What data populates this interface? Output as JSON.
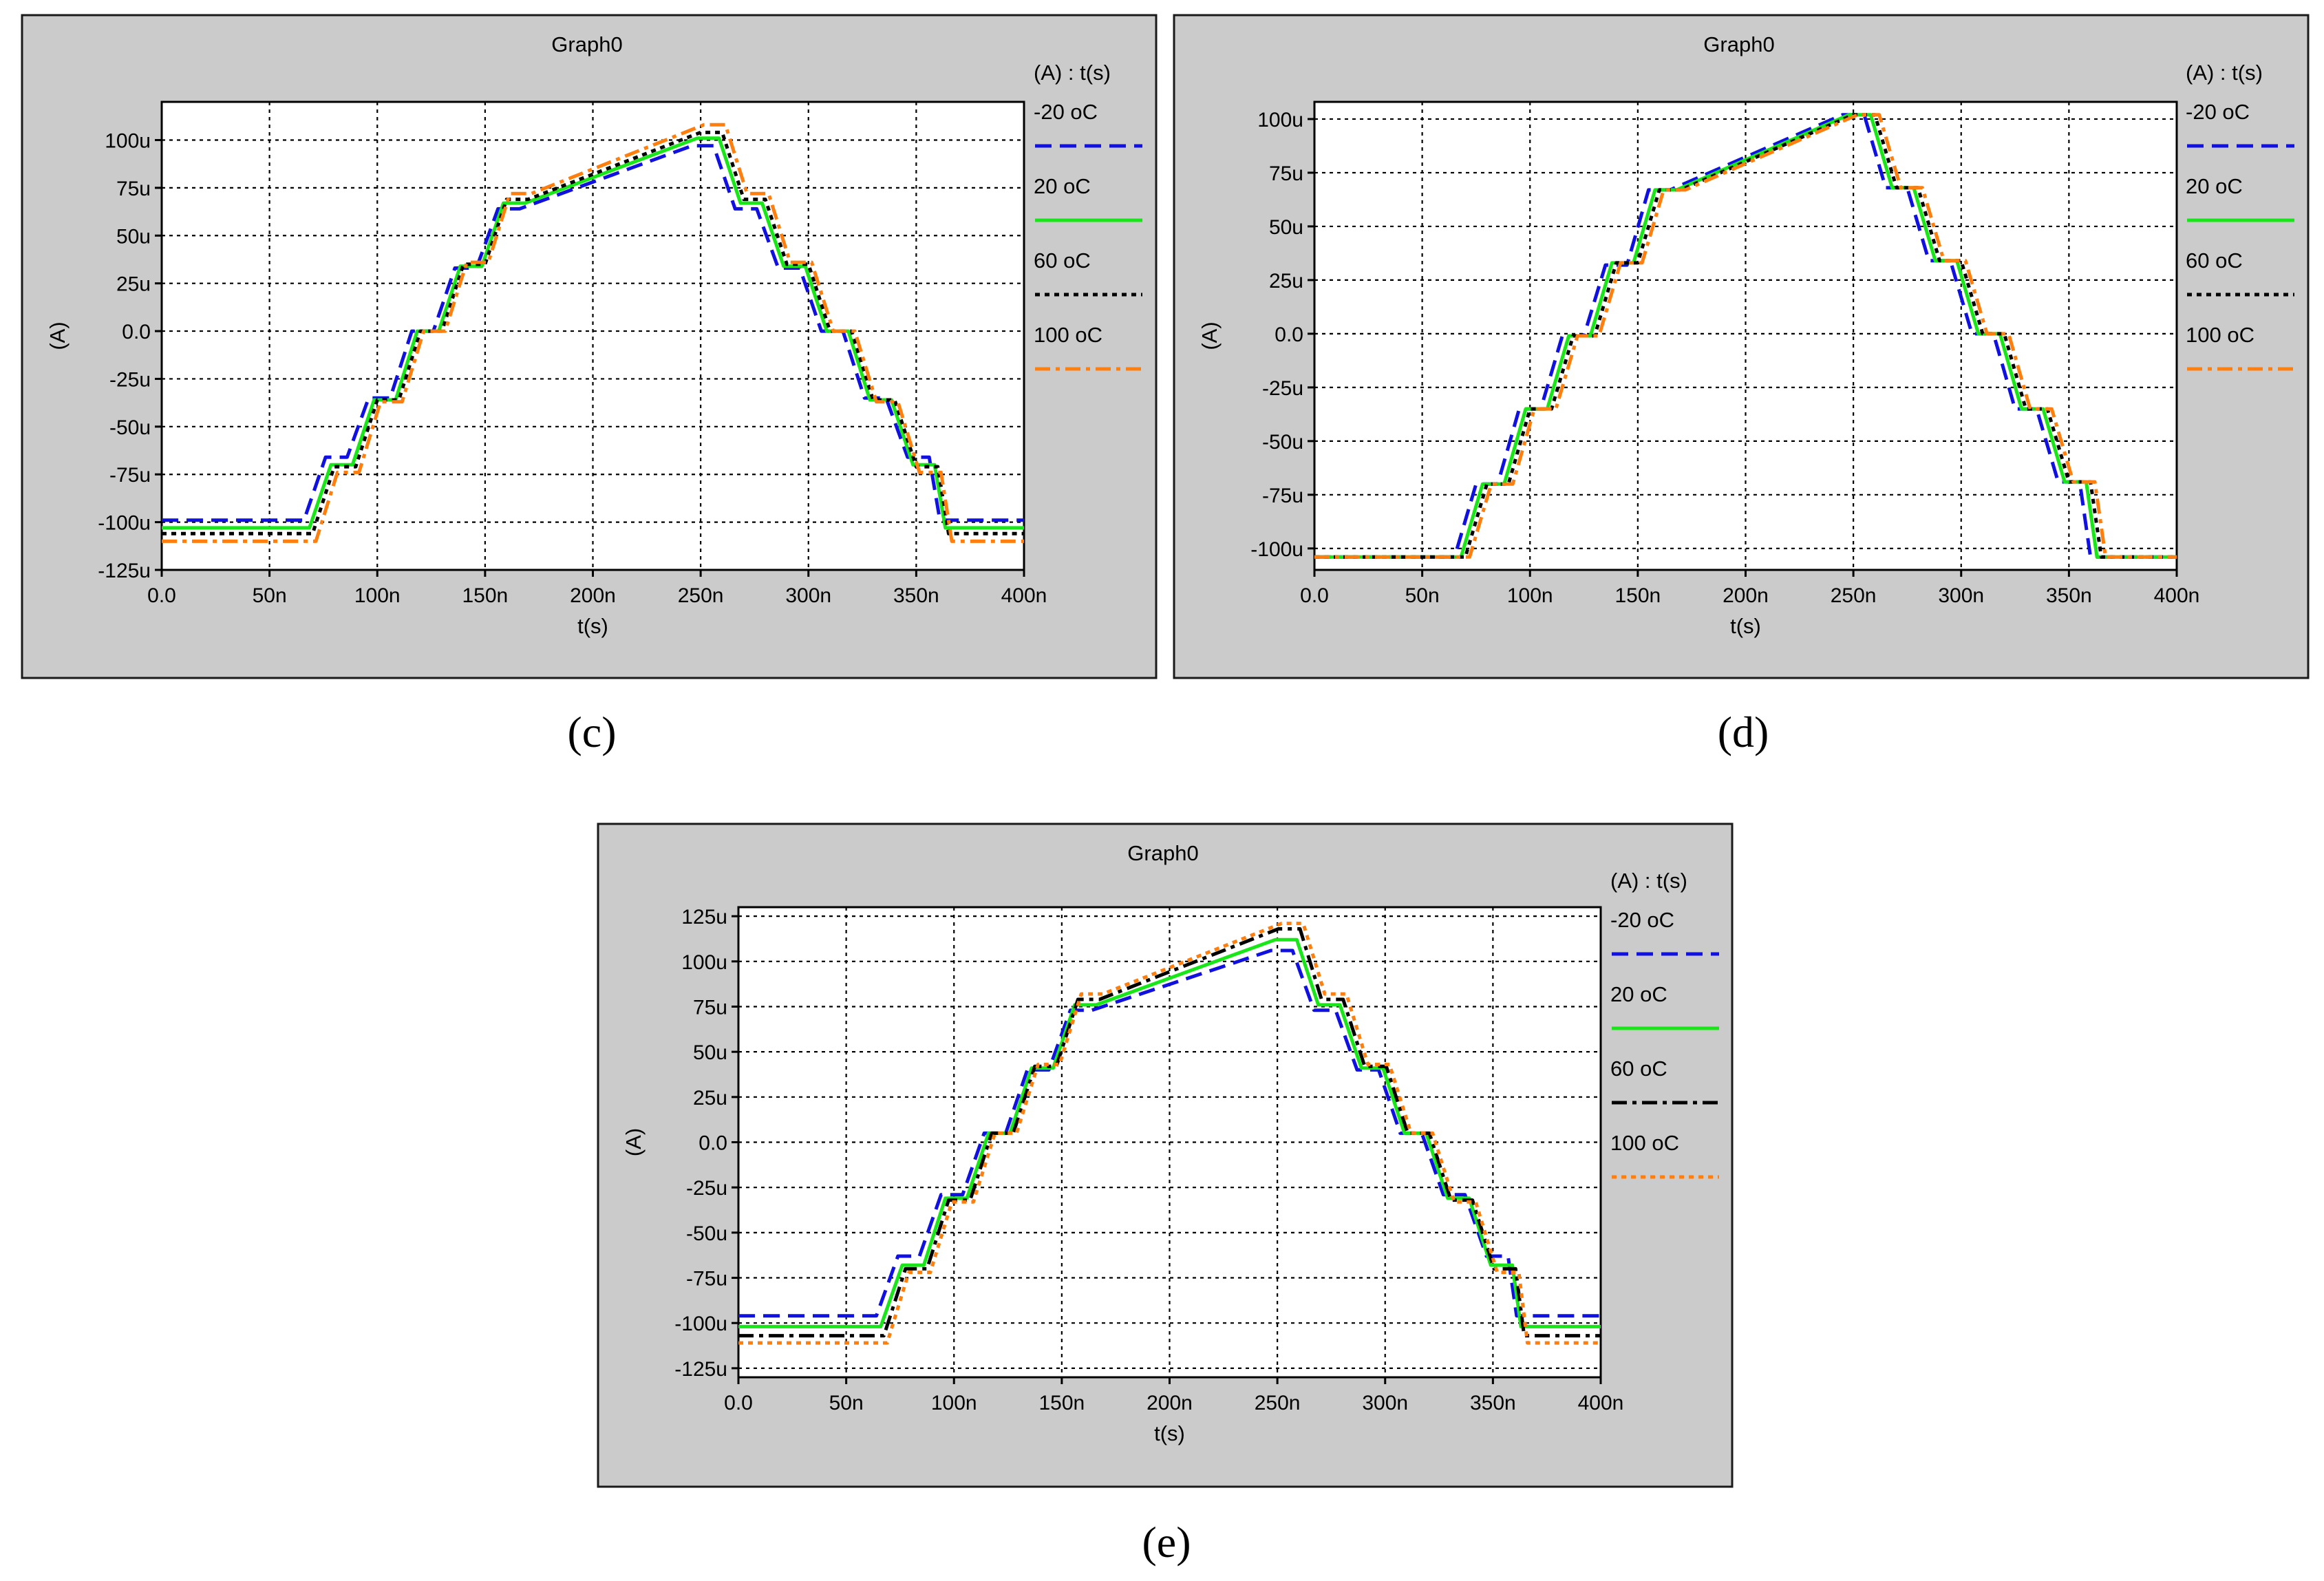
{
  "chart_data": [
    {
      "id": "c",
      "type": "line",
      "title": "Graph0",
      "caption": "(c)",
      "xlabel": "t(s)",
      "ylabel": "(A)",
      "legend_header": "(A) : t(s)",
      "legend_position": "right",
      "grid": true,
      "xlim": [
        0,
        400
      ],
      "ylim": [
        -125,
        120
      ],
      "x_ticks": [
        {
          "v": 0,
          "label": "0.0"
        },
        {
          "v": 50,
          "label": "50n"
        },
        {
          "v": 100,
          "label": "100n"
        },
        {
          "v": 150,
          "label": "150n"
        },
        {
          "v": 200,
          "label": "200n"
        },
        {
          "v": 250,
          "label": "250n"
        },
        {
          "v": 300,
          "label": "300n"
        },
        {
          "v": 350,
          "label": "350n"
        },
        {
          "v": 400,
          "label": "400n"
        }
      ],
      "y_ticks": [
        {
          "v": 100,
          "label": "100u"
        },
        {
          "v": 75,
          "label": "75u"
        },
        {
          "v": 50,
          "label": "50u"
        },
        {
          "v": 25,
          "label": "25u"
        },
        {
          "v": 0,
          "label": "0.0"
        },
        {
          "v": -25,
          "label": "-25u"
        },
        {
          "v": -50,
          "label": "-50u"
        },
        {
          "v": -75,
          "label": "-75u"
        },
        {
          "v": -100,
          "label": "-100u"
        },
        {
          "v": -125,
          "label": "-125u"
        }
      ],
      "series": [
        {
          "name": "-20 oC",
          "color": "#1010e0",
          "dash": "dash",
          "shift": -4,
          "x": [
            0,
            70,
            80,
            90,
            100,
            110,
            120,
            130,
            140,
            150,
            160,
            170,
            250,
            260,
            270,
            280,
            290,
            300,
            310,
            320,
            330,
            340,
            350,
            360,
            365,
            400
          ],
          "values": [
            -99,
            -99,
            -66,
            -66,
            -35,
            -35,
            0,
            0,
            33,
            33,
            64,
            64,
            97,
            97,
            64,
            64,
            33,
            33,
            0,
            0,
            -35,
            -35,
            -66,
            -66,
            -99,
            -99
          ]
        },
        {
          "name": "20 oC",
          "color": "#19e619",
          "dash": "solid",
          "shift": -1.5,
          "x": [
            0,
            70,
            80,
            90,
            100,
            110,
            120,
            130,
            140,
            150,
            160,
            170,
            250,
            260,
            270,
            280,
            290,
            300,
            310,
            320,
            330,
            340,
            350,
            360,
            365,
            400
          ],
          "values": [
            -103,
            -103,
            -70,
            -70,
            -36,
            -36,
            0,
            0,
            34,
            34,
            67,
            67,
            101,
            101,
            67,
            67,
            34,
            34,
            0,
            0,
            -36,
            -36,
            -70,
            -70,
            -103,
            -103
          ]
        },
        {
          "name": "60 oC",
          "color": "#000000",
          "dash": "dot",
          "shift": 0,
          "x": [
            0,
            70,
            80,
            90,
            100,
            110,
            120,
            130,
            140,
            150,
            160,
            170,
            250,
            260,
            270,
            280,
            290,
            300,
            310,
            320,
            330,
            340,
            350,
            360,
            365,
            400
          ],
          "values": [
            -106,
            -106,
            -71,
            -71,
            -36,
            -36,
            0,
            0,
            35,
            35,
            69,
            69,
            104,
            104,
            69,
            69,
            35,
            35,
            0,
            0,
            -36,
            -36,
            -71,
            -71,
            -106,
            -106
          ]
        },
        {
          "name": "100 oC",
          "color": "#ff7f0e",
          "dash": "dashdot",
          "shift": 1.5,
          "x": [
            0,
            70,
            80,
            90,
            100,
            110,
            120,
            130,
            140,
            150,
            160,
            170,
            250,
            260,
            270,
            280,
            290,
            300,
            310,
            320,
            330,
            340,
            350,
            360,
            365,
            400
          ],
          "values": [
            -110,
            -110,
            -74,
            -74,
            -37,
            -37,
            0,
            0,
            36,
            36,
            72,
            72,
            108,
            108,
            72,
            72,
            36,
            36,
            0,
            0,
            -37,
            -37,
            -74,
            -74,
            -110,
            -110
          ]
        }
      ]
    },
    {
      "id": "d",
      "type": "line",
      "title": "Graph0",
      "caption": "(d)",
      "xlabel": "t(s)",
      "ylabel": "(A)",
      "legend_header": "(A) : t(s)",
      "legend_position": "right",
      "grid": true,
      "xlim": [
        0,
        400
      ],
      "ylim": [
        -110,
        108
      ],
      "x_ticks": [
        {
          "v": 0,
          "label": "0.0"
        },
        {
          "v": 50,
          "label": "50n"
        },
        {
          "v": 100,
          "label": "100n"
        },
        {
          "v": 150,
          "label": "150n"
        },
        {
          "v": 200,
          "label": "200n"
        },
        {
          "v": 250,
          "label": "250n"
        },
        {
          "v": 300,
          "label": "300n"
        },
        {
          "v": 350,
          "label": "350n"
        },
        {
          "v": 400,
          "label": "400n"
        }
      ],
      "y_ticks": [
        {
          "v": 100,
          "label": "100u"
        },
        {
          "v": 75,
          "label": "75u"
        },
        {
          "v": 50,
          "label": "50u"
        },
        {
          "v": 25,
          "label": "25u"
        },
        {
          "v": 0,
          "label": "0.0"
        },
        {
          "v": -25,
          "label": "-25u"
        },
        {
          "v": -50,
          "label": "-50u"
        },
        {
          "v": -75,
          "label": "-75u"
        },
        {
          "v": -100,
          "label": "-100u"
        }
      ],
      "series": [
        {
          "name": "-20 oC",
          "color": "#1010e0",
          "dash": "dash",
          "shift": -5,
          "x": [
            0,
            70,
            80,
            90,
            100,
            110,
            120,
            130,
            140,
            150,
            160,
            170,
            250,
            260,
            270,
            280,
            290,
            300,
            310,
            320,
            330,
            340,
            350,
            360,
            365,
            400
          ],
          "values": [
            -104,
            -104,
            -70,
            -70,
            -35,
            -35,
            -1,
            -1,
            32,
            32,
            67,
            67,
            102,
            102,
            68,
            68,
            34,
            34,
            0,
            0,
            -35,
            -35,
            -69,
            -69,
            -104,
            -104
          ]
        },
        {
          "name": "20 oC",
          "color": "#19e619",
          "dash": "solid",
          "shift": -2,
          "x": [
            0,
            70,
            80,
            90,
            100,
            110,
            120,
            130,
            140,
            150,
            160,
            170,
            250,
            260,
            270,
            280,
            290,
            300,
            310,
            320,
            330,
            340,
            350,
            360,
            365,
            400
          ],
          "values": [
            -104,
            -104,
            -70,
            -70,
            -35,
            -35,
            -1,
            -1,
            33,
            33,
            67,
            67,
            102,
            102,
            68,
            68,
            34,
            34,
            0,
            0,
            -35,
            -35,
            -69,
            -69,
            -104,
            -104
          ]
        },
        {
          "name": "60 oC",
          "color": "#000000",
          "dash": "dot",
          "shift": 0,
          "x": [
            0,
            70,
            80,
            90,
            100,
            110,
            120,
            130,
            140,
            150,
            160,
            170,
            250,
            260,
            270,
            280,
            290,
            300,
            310,
            320,
            330,
            340,
            350,
            360,
            365,
            400
          ],
          "values": [
            -104,
            -104,
            -70,
            -70,
            -35,
            -35,
            -1,
            -1,
            33,
            33,
            67,
            67,
            102,
            102,
            68,
            68,
            34,
            34,
            0,
            0,
            -35,
            -35,
            -69,
            -69,
            -104,
            -104
          ]
        },
        {
          "name": "100 oC",
          "color": "#ff7f0e",
          "dash": "dashdot",
          "shift": 2,
          "x": [
            0,
            70,
            80,
            90,
            100,
            110,
            120,
            130,
            140,
            150,
            160,
            170,
            250,
            260,
            270,
            280,
            290,
            300,
            310,
            320,
            330,
            340,
            350,
            360,
            365,
            400
          ],
          "values": [
            -104,
            -104,
            -70,
            -70,
            -35,
            -35,
            -1,
            -1,
            33,
            33,
            67,
            67,
            102,
            102,
            68,
            68,
            34,
            34,
            0,
            0,
            -35,
            -35,
            -69,
            -69,
            -104,
            -104
          ]
        }
      ]
    },
    {
      "id": "e",
      "type": "line",
      "title": "Graph0",
      "caption": "(e)",
      "xlabel": "t(s)",
      "ylabel": "(A)",
      "legend_header": "(A) : t(s)",
      "legend_position": "right",
      "grid": true,
      "xlim": [
        0,
        400
      ],
      "ylim": [
        -130,
        130
      ],
      "x_ticks": [
        {
          "v": 0,
          "label": "0.0"
        },
        {
          "v": 50,
          "label": "50n"
        },
        {
          "v": 100,
          "label": "100n"
        },
        {
          "v": 150,
          "label": "150n"
        },
        {
          "v": 200,
          "label": "200n"
        },
        {
          "v": 250,
          "label": "250n"
        },
        {
          "v": 300,
          "label": "300n"
        },
        {
          "v": 350,
          "label": "350n"
        },
        {
          "v": 400,
          "label": "400n"
        }
      ],
      "y_ticks": [
        {
          "v": 125,
          "label": "125u"
        },
        {
          "v": 100,
          "label": "100u"
        },
        {
          "v": 75,
          "label": "75u"
        },
        {
          "v": 50,
          "label": "50u"
        },
        {
          "v": 25,
          "label": "25u"
        },
        {
          "v": 0,
          "label": "0.0"
        },
        {
          "v": -25,
          "label": "-25u"
        },
        {
          "v": -50,
          "label": "-50u"
        },
        {
          "v": -75,
          "label": "-75u"
        },
        {
          "v": -100,
          "label": "-100u"
        },
        {
          "v": -125,
          "label": "-125u"
        }
      ],
      "series": [
        {
          "name": "-20 oC",
          "color": "#1010e0",
          "dash": "dash",
          "shift": -3,
          "x": [
            0,
            67,
            77,
            87,
            97,
            107,
            117,
            127,
            137,
            147,
            157,
            167,
            250,
            260,
            270,
            280,
            290,
            300,
            310,
            320,
            330,
            340,
            350,
            360,
            364,
            400
          ],
          "values": [
            -96,
            -96,
            -63,
            -63,
            -29,
            -29,
            5,
            5,
            40,
            40,
            73,
            73,
            106,
            106,
            73,
            73,
            40,
            40,
            5,
            5,
            -29,
            -29,
            -63,
            -63,
            -96,
            -96
          ]
        },
        {
          "name": "20 oC",
          "color": "#19e619",
          "dash": "solid",
          "shift": -1,
          "x": [
            0,
            67,
            77,
            87,
            97,
            107,
            117,
            127,
            137,
            147,
            157,
            167,
            250,
            260,
            270,
            280,
            290,
            300,
            310,
            320,
            330,
            340,
            350,
            360,
            364,
            400
          ],
          "values": [
            -102,
            -102,
            -68,
            -68,
            -31,
            -31,
            5,
            5,
            41,
            41,
            76,
            76,
            112,
            112,
            76,
            76,
            41,
            41,
            5,
            5,
            -31,
            -31,
            -68,
            -68,
            -102,
            -102
          ]
        },
        {
          "name": "60 oC",
          "color": "#000000",
          "dash": "dashdot",
          "shift": 0.5,
          "x": [
            0,
            67,
            77,
            87,
            97,
            107,
            117,
            127,
            137,
            147,
            157,
            167,
            250,
            260,
            270,
            280,
            290,
            300,
            310,
            320,
            330,
            340,
            350,
            360,
            364,
            400
          ],
          "values": [
            -107,
            -107,
            -70,
            -70,
            -32,
            -32,
            5,
            5,
            42,
            42,
            79,
            79,
            118,
            118,
            79,
            79,
            42,
            42,
            5,
            5,
            -32,
            -32,
            -70,
            -70,
            -107,
            -107
          ]
        },
        {
          "name": "100 oC",
          "color": "#ff7f0e",
          "dash": "dot",
          "shift": 2,
          "x": [
            0,
            67,
            77,
            87,
            97,
            107,
            117,
            127,
            137,
            147,
            157,
            167,
            250,
            260,
            270,
            280,
            290,
            300,
            310,
            320,
            330,
            340,
            350,
            360,
            364,
            400
          ],
          "values": [
            -111,
            -111,
            -72,
            -72,
            -33,
            -33,
            5,
            5,
            43,
            43,
            82,
            82,
            121,
            121,
            82,
            82,
            43,
            43,
            5,
            5,
            -33,
            -33,
            -72,
            -72,
            -111,
            -111
          ]
        }
      ]
    }
  ]
}
